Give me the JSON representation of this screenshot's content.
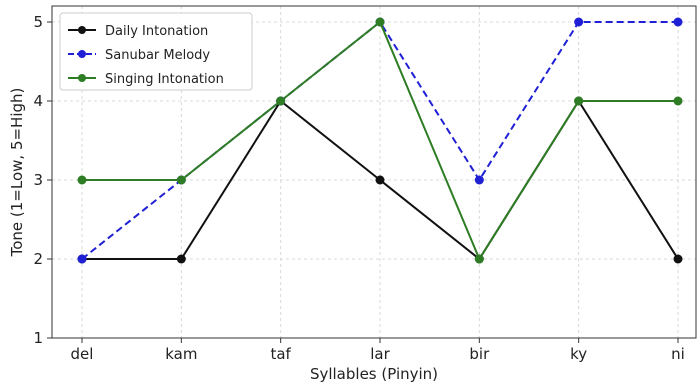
{
  "chart_data": {
    "type": "line",
    "title": "",
    "xlabel": "Syllables (Pinyin)",
    "ylabel": "Tone (1=Low, 5=High)",
    "categories": [
      "del",
      "kam",
      "taf",
      "lar",
      "bir",
      "ky",
      "ni"
    ],
    "ylim": [
      1,
      5
    ],
    "yticks": [
      1,
      2,
      3,
      4,
      5
    ],
    "grid": true,
    "legend_position": "top-left",
    "series": [
      {
        "name": "Daily Intonation",
        "values": [
          2,
          2,
          4,
          3,
          2,
          4,
          2
        ],
        "color": "#111111",
        "dash": "solid"
      },
      {
        "name": "Sanubar Melody",
        "values": [
          2,
          3,
          4,
          5,
          3,
          5,
          5
        ],
        "color": "#1f1fd6",
        "dash": "dashed"
      },
      {
        "name": "Singing Intonation",
        "values": [
          3,
          3,
          4,
          5,
          2,
          4,
          4
        ],
        "color": "#2e7d24",
        "dash": "solid"
      }
    ]
  }
}
